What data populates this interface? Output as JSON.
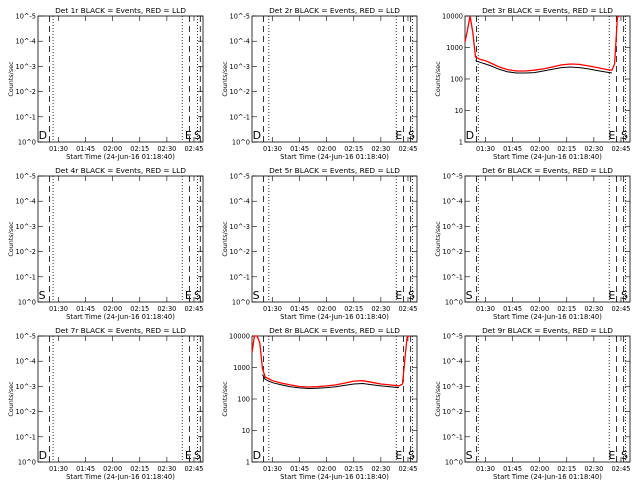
{
  "colors": {
    "events": "#000000",
    "lld": "#ff0000",
    "background": "#ffffff"
  },
  "chart_data": [
    {
      "type": "line",
      "title": "Det 1r BLACK = Events, RED = LLD",
      "xlabel": "Start Time (24-Jun-16 01:18:40)",
      "ylabel": "Counts/sec",
      "x_ticks": [
        "01:30",
        "01:45",
        "02:00",
        "02:15",
        "02:30",
        "02:45"
      ],
      "y_ticks": [
        "10^0",
        "10^-1",
        "10^-2",
        "10^-3",
        "10^-4",
        "10^-5"
      ],
      "xlim": [
        "01:18:40",
        "02:50:00"
      ],
      "markers": [
        {
          "label": "D",
          "x": "01:19:00"
        },
        {
          "label": "E",
          "x": "02:40:00"
        },
        {
          "label": "S",
          "x": "02:45:00"
        }
      ],
      "dashed_lines": [
        "01:25:00",
        "02:42:30",
        "02:48:30"
      ],
      "dotted_lines": [
        "01:27:00",
        "02:38:30",
        "02:47:00"
      ],
      "series": []
    },
    {
      "type": "line",
      "title": "Det 2r BLACK = Events, RED = LLD",
      "xlabel": "Start Time (24-Jun-16 01:18:40)",
      "ylabel": "Counts/sec",
      "x_ticks": [
        "01:30",
        "01:45",
        "02:00",
        "02:15",
        "02:30",
        "02:45"
      ],
      "y_ticks": [
        "10^0",
        "10^-1",
        "10^-2",
        "10^-3",
        "10^-4",
        "10^-5"
      ],
      "xlim": [
        "01:18:40",
        "02:50:00"
      ],
      "markers": [
        {
          "label": "D",
          "x": "01:19:00"
        },
        {
          "label": "E",
          "x": "02:38:00"
        },
        {
          "label": "S",
          "x": "02:45:00"
        }
      ],
      "dashed_lines": [
        "01:25:00",
        "02:42:30",
        "02:46:30"
      ],
      "dotted_lines": [
        "01:28:00",
        "02:38:30",
        "02:47:30"
      ],
      "series": []
    },
    {
      "type": "line",
      "title": "Det 3r BLACK = Events, RED = LLD",
      "xlabel": "Start Time (24-Jun-16 01:18:40)",
      "ylabel": "Counts/sec",
      "x_ticks": [
        "01:30",
        "01:45",
        "02:00",
        "02:15",
        "02:30",
        "02:45"
      ],
      "y_ticks": [
        "1",
        "10",
        "100",
        "1000",
        "10000"
      ],
      "log_y": true,
      "ylim": [
        1,
        10000
      ],
      "xlim": [
        "01:18:40",
        "02:50:00"
      ],
      "markers": [
        {
          "label": "D",
          "x": "01:19:00"
        },
        {
          "label": "E",
          "x": "02:38:00"
        },
        {
          "label": "S",
          "x": "02:45:00"
        }
      ],
      "dashed_lines": [
        "01:25:00",
        "02:42:30",
        "02:46:30"
      ],
      "dotted_lines": [
        "01:26:00",
        "02:38:30",
        "02:47:30"
      ],
      "series": [
        {
          "color": "#ff0000",
          "points": [
            [
              "01:18:40",
              1500
            ],
            [
              "01:20:00",
              3500
            ],
            [
              "01:21:30",
              12000
            ],
            [
              "01:23:00",
              3000
            ],
            [
              "01:24:30",
              500
            ],
            [
              "01:27:00",
              420
            ],
            [
              "01:30:00",
              380
            ],
            [
              "01:33:00",
              320
            ],
            [
              "01:37:00",
              250
            ],
            [
              "01:42:00",
              200
            ],
            [
              "01:47:00",
              180
            ],
            [
              "01:52:00",
              180
            ],
            [
              "01:57:00",
              190
            ],
            [
              "02:02:00",
              210
            ],
            [
              "02:07:00",
              240
            ],
            [
              "02:12:00",
              280
            ],
            [
              "02:17:00",
              300
            ],
            [
              "02:22:00",
              290
            ],
            [
              "02:27:00",
              260
            ],
            [
              "02:32:00",
              230
            ],
            [
              "02:37:00",
              200
            ],
            [
              "02:40:00",
              190
            ],
            [
              "02:41:30",
              300
            ],
            [
              "02:43:00",
              9000
            ],
            [
              "02:44:00",
              12000
            ]
          ]
        },
        {
          "color": "#000000",
          "points": [
            [
              "01:24:30",
              380
            ],
            [
              "01:27:00",
              340
            ],
            [
              "01:30:00",
              300
            ],
            [
              "01:33:00",
              260
            ],
            [
              "01:37:00",
              210
            ],
            [
              "01:42:00",
              170
            ],
            [
              "01:47:00",
              155
            ],
            [
              "01:52:00",
              155
            ],
            [
              "01:57:00",
              160
            ],
            [
              "02:02:00",
              180
            ],
            [
              "02:07:00",
              205
            ],
            [
              "02:12:00",
              230
            ],
            [
              "02:17:00",
              240
            ],
            [
              "02:22:00",
              230
            ],
            [
              "02:27:00",
              210
            ],
            [
              "02:32:00",
              185
            ],
            [
              "02:37:00",
              165
            ],
            [
              "02:40:00",
              155
            ]
          ]
        }
      ]
    },
    {
      "type": "line",
      "title": "Det 4r BLACK = Events, RED = LLD",
      "xlabel": "Start Time (24-Jun-16 01:18:40)",
      "ylabel": "Counts/sec",
      "x_ticks": [
        "01:30",
        "01:45",
        "02:00",
        "02:15",
        "02:30",
        "02:45"
      ],
      "y_ticks": [
        "10^0",
        "10^-1",
        "10^-2",
        "10^-3",
        "10^-4",
        "10^-5"
      ],
      "xlim": [
        "01:18:40",
        "02:50:00"
      ],
      "markers": [
        {
          "label": "S",
          "x": "01:19:00"
        },
        {
          "label": "E",
          "x": "02:40:00"
        },
        {
          "label": "S",
          "x": "02:45:00"
        }
      ],
      "dashed_lines": [
        "01:25:00",
        "02:42:30",
        "02:48:30"
      ],
      "dotted_lines": [
        "01:27:00",
        "02:38:30",
        "02:47:00"
      ],
      "series": []
    },
    {
      "type": "line",
      "title": "Det 5r BLACK = Events, RED = LLD",
      "xlabel": "Start Time (24-Jun-16 01:18:40)",
      "ylabel": "Counts/sec",
      "x_ticks": [
        "01:30",
        "01:45",
        "02:00",
        "02:15",
        "02:30",
        "02:45"
      ],
      "y_ticks": [
        "10^0",
        "10^-1",
        "10^-2",
        "10^-3",
        "10^-4",
        "10^-5"
      ],
      "xlim": [
        "01:18:40",
        "02:50:00"
      ],
      "markers": [
        {
          "label": "S",
          "x": "01:19:00"
        },
        {
          "label": "E",
          "x": "02:38:00"
        },
        {
          "label": "S",
          "x": "02:45:00"
        }
      ],
      "dashed_lines": [
        "01:25:00",
        "02:42:30",
        "02:46:30"
      ],
      "dotted_lines": [
        "01:28:00",
        "02:38:30",
        "02:47:30"
      ],
      "series": []
    },
    {
      "type": "line",
      "title": "Det 6r BLACK = Events, RED = LLD",
      "xlabel": "Start Time (24-Jun-16 01:18:40)",
      "ylabel": "Counts/sec",
      "x_ticks": [
        "01:30",
        "01:45",
        "02:00",
        "02:15",
        "02:30",
        "02:45"
      ],
      "y_ticks": [
        "10^0",
        "10^-1",
        "10^-2",
        "10^-3",
        "10^-4",
        "10^-5"
      ],
      "xlim": [
        "01:18:40",
        "02:50:00"
      ],
      "markers": [
        {
          "label": "S",
          "x": "01:19:00"
        },
        {
          "label": "E",
          "x": "02:38:00"
        },
        {
          "label": "S",
          "x": "02:45:00"
        }
      ],
      "dashed_lines": [
        "01:25:00",
        "02:42:30",
        "02:46:30"
      ],
      "dotted_lines": [
        "01:26:00",
        "02:38:30",
        "02:47:30"
      ],
      "series": []
    },
    {
      "type": "line",
      "title": "Det 7r BLACK = Events, RED = LLD",
      "xlabel": "Start Time (24-Jun-16 01:18:40)",
      "ylabel": "Counts/sec",
      "x_ticks": [
        "01:30",
        "01:45",
        "02:00",
        "02:15",
        "02:30",
        "02:45"
      ],
      "y_ticks": [
        "10^0",
        "10^-1",
        "10^-2",
        "10^-3",
        "10^-4",
        "10^-5"
      ],
      "xlim": [
        "01:18:40",
        "02:50:00"
      ],
      "markers": [
        {
          "label": "D",
          "x": "01:19:00"
        },
        {
          "label": "E",
          "x": "02:40:00"
        },
        {
          "label": "S",
          "x": "02:45:00"
        }
      ],
      "dashed_lines": [
        "01:25:00",
        "02:42:30",
        "02:48:30"
      ],
      "dotted_lines": [
        "01:27:00",
        "02:38:30",
        "02:47:00"
      ],
      "series": []
    },
    {
      "type": "line",
      "title": "Det 8r BLACK = Events, RED = LLD",
      "xlabel": "Start Time (24-Jun-16 01:18:40)",
      "ylabel": "Counts/sec",
      "x_ticks": [
        "01:30",
        "01:45",
        "02:00",
        "02:15",
        "02:30",
        "02:45"
      ],
      "y_ticks": [
        "1",
        "10",
        "100",
        "1000",
        "10000"
      ],
      "log_y": true,
      "ylim": [
        1,
        10000
      ],
      "xlim": [
        "01:18:40",
        "02:50:00"
      ],
      "markers": [
        {
          "label": "D",
          "x": "01:19:00"
        },
        {
          "label": "E",
          "x": "02:38:00"
        },
        {
          "label": "S",
          "x": "02:45:00"
        }
      ],
      "dashed_lines": [
        "01:25:00",
        "02:42:30",
        "02:46:30"
      ],
      "dotted_lines": [
        "01:28:00",
        "02:38:30",
        "02:47:30"
      ],
      "series": [
        {
          "color": "#ff0000",
          "points": [
            [
              "01:18:40",
              3000
            ],
            [
              "01:20:00",
              10000
            ],
            [
              "01:21:30",
              14000
            ],
            [
              "01:23:00",
              6000
            ],
            [
              "01:24:30",
              900
            ],
            [
              "01:26:00",
              500
            ],
            [
              "01:30:00",
              380
            ],
            [
              "01:35:00",
              320
            ],
            [
              "01:40:00",
              280
            ],
            [
              "01:45:00",
              250
            ],
            [
              "01:50:00",
              240
            ],
            [
              "01:55:00",
              245
            ],
            [
              "02:00:00",
              260
            ],
            [
              "02:05:00",
              280
            ],
            [
              "02:10:00",
              320
            ],
            [
              "02:15:00",
              370
            ],
            [
              "02:20:00",
              380
            ],
            [
              "02:25:00",
              340
            ],
            [
              "02:30:00",
              300
            ],
            [
              "02:35:00",
              280
            ],
            [
              "02:40:00",
              260
            ],
            [
              "02:42:00",
              300
            ],
            [
              "02:43:30",
              2500
            ],
            [
              "02:44:30",
              9000
            ],
            [
              "02:45:30",
              13000
            ]
          ]
        },
        {
          "color": "#000000",
          "points": [
            [
              "01:24:30",
              600
            ],
            [
              "01:26:00",
              420
            ],
            [
              "01:30:00",
              330
            ],
            [
              "01:35:00",
              280
            ],
            [
              "01:40:00",
              245
            ],
            [
              "01:45:00",
              225
            ],
            [
              "01:50:00",
              215
            ],
            [
              "01:55:00",
              220
            ],
            [
              "02:00:00",
              230
            ],
            [
              "02:05:00",
              245
            ],
            [
              "02:10:00",
              270
            ],
            [
              "02:15:00",
              300
            ],
            [
              "02:20:00",
              310
            ],
            [
              "02:25:00",
              285
            ],
            [
              "02:30:00",
              260
            ],
            [
              "02:35:00",
              245
            ],
            [
              "02:40:00",
              230
            ]
          ]
        }
      ]
    },
    {
      "type": "line",
      "title": "Det 9r BLACK = Events, RED = LLD",
      "xlabel": "Start Time (24-Jun-16 01:18:40)",
      "ylabel": "Counts/sec",
      "x_ticks": [
        "01:30",
        "01:45",
        "02:00",
        "02:15",
        "02:30",
        "02:45"
      ],
      "y_ticks": [
        "10^0",
        "10^-1",
        "10^-2",
        "10^-3",
        "10^-4",
        "10^-5"
      ],
      "xlim": [
        "01:18:40",
        "02:50:00"
      ],
      "markers": [
        {
          "label": "S",
          "x": "01:19:00"
        },
        {
          "label": "E",
          "x": "02:38:00"
        },
        {
          "label": "S",
          "x": "02:45:00"
        }
      ],
      "dashed_lines": [
        "01:25:00",
        "02:42:30",
        "02:46:30"
      ],
      "dotted_lines": [
        "01:26:00",
        "02:38:30",
        "02:47:30"
      ],
      "series": []
    }
  ]
}
